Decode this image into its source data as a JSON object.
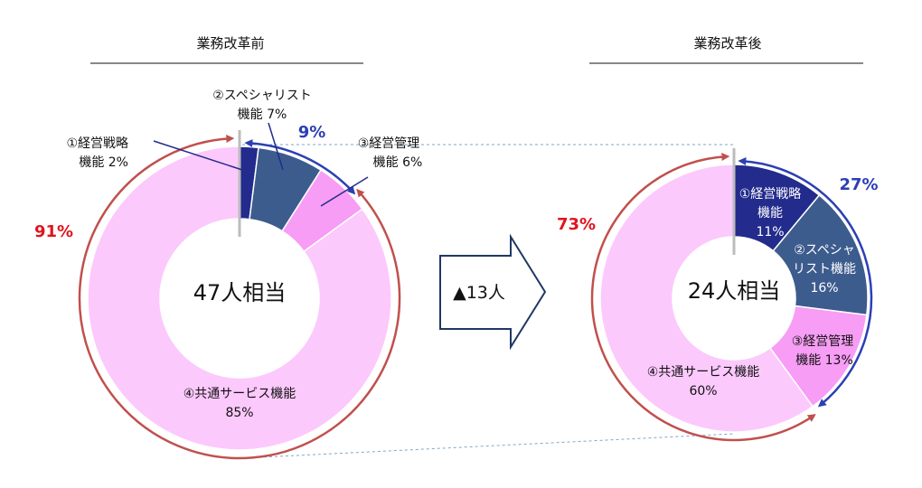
{
  "colors": {
    "strategy": "#232b8c",
    "specialist": "#3d5c8e",
    "management": "#f79df5",
    "shared": "#fcc9fc",
    "red_arc": "#c0504d",
    "blue_arc": "#2b3fb4",
    "red_text": "#e0141e",
    "gray_divider": "#bcbcbc",
    "connector": "#7fa7c9",
    "arrow_outline": "#1f3864"
  },
  "arrow": {
    "label": "▲13人"
  },
  "chart_data": [
    {
      "type": "pie",
      "title": "業務改革前",
      "center_label": "47人相当",
      "slices": [
        {
          "key": "strategy",
          "label_lines": [
            "①経営戦略",
            "機能 2%"
          ],
          "value": 2
        },
        {
          "key": "specialist",
          "label_lines": [
            "②スペシャリスト",
            "機能 7%"
          ],
          "value": 7
        },
        {
          "key": "management",
          "label_lines": [
            "③経営管理",
            "機能 6%"
          ],
          "value": 6
        },
        {
          "key": "shared",
          "label_lines": [
            "④共通サービス機能",
            "85%"
          ],
          "value": 85
        }
      ],
      "red_bracket_pct": "91%",
      "blue_bracket_pct": "9%"
    },
    {
      "type": "pie",
      "title": "業務改革後",
      "center_label": "24人相当",
      "slices": [
        {
          "key": "strategy",
          "label_lines": [
            "①経営戦略",
            "機能",
            "11%"
          ],
          "value": 11
        },
        {
          "key": "specialist",
          "label_lines": [
            "②スペシャ",
            "リスト機能",
            "16%"
          ],
          "value": 16
        },
        {
          "key": "management",
          "label_lines": [
            "③経営管理",
            "機能 13%"
          ],
          "value": 13
        },
        {
          "key": "shared",
          "label_lines": [
            "④共通サービス機能",
            "60%"
          ],
          "value": 60
        }
      ],
      "red_bracket_pct": "73%",
      "blue_bracket_pct": "27%"
    }
  ]
}
